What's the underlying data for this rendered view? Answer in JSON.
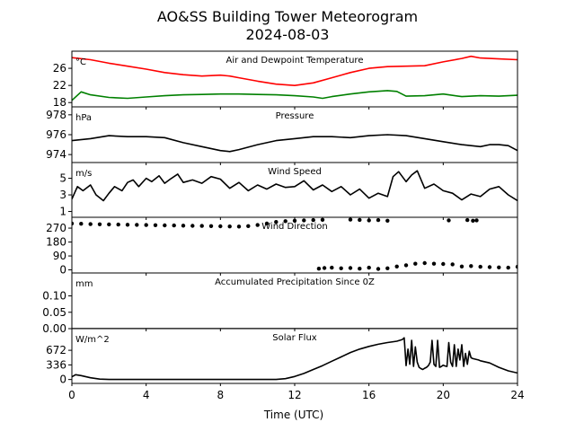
{
  "figure": {
    "title_line1": "AO&SS Building Tower Meteorogram",
    "title_line2": "2024-08-03",
    "xlabel": "Time (UTC)"
  },
  "chart_data": [
    {
      "type": "line",
      "title": "Air and Dewpoint Temperature",
      "unit_label": "°C",
      "xlim": [
        0,
        24
      ],
      "ylim": [
        17,
        30
      ],
      "yticks": [
        18,
        22,
        26
      ],
      "series": [
        {
          "color": "#ff0000",
          "x": [
            0,
            1,
            2,
            3,
            4,
            5,
            6,
            7,
            8,
            8.5,
            9,
            10,
            11,
            12,
            13,
            14,
            15,
            16,
            17,
            18,
            19,
            20,
            21,
            21.5,
            22,
            23,
            24
          ],
          "y": [
            28.5,
            28.0,
            27.2,
            26.5,
            25.8,
            25.0,
            24.5,
            24.2,
            24.4,
            24.2,
            23.8,
            23.0,
            22.3,
            22.0,
            22.6,
            23.8,
            25.0,
            26.0,
            26.4,
            26.5,
            26.6,
            27.5,
            28.3,
            28.8,
            28.4,
            28.2,
            28.0
          ]
        },
        {
          "color": "#008000",
          "x": [
            0,
            0.5,
            1,
            2,
            3,
            4,
            5,
            6,
            7,
            8,
            9,
            10,
            11,
            12,
            13,
            13.5,
            14,
            15,
            16,
            17,
            17.5,
            18,
            19,
            20,
            21,
            22,
            23,
            24
          ],
          "y": [
            18.5,
            20.5,
            19.8,
            19.2,
            19.0,
            19.3,
            19.6,
            19.8,
            19.9,
            20.0,
            20.0,
            19.9,
            19.8,
            19.6,
            19.3,
            19.0,
            19.4,
            20.0,
            20.5,
            20.8,
            20.6,
            19.5,
            19.6,
            20.0,
            19.4,
            19.6,
            19.5,
            19.7
          ]
        }
      ]
    },
    {
      "type": "line",
      "title": "Pressure",
      "unit_label": "hPa",
      "xlim": [
        0,
        24
      ],
      "ylim": [
        973.2,
        978.8
      ],
      "yticks": [
        974,
        976,
        978
      ],
      "series": [
        {
          "color": "#000000",
          "x": [
            0,
            1,
            2,
            3,
            4,
            5,
            6,
            7,
            8,
            8.5,
            9,
            10,
            11,
            12,
            13,
            14,
            15,
            16,
            17,
            18,
            19,
            20,
            21,
            22,
            22.5,
            23,
            23.5,
            24
          ],
          "y": [
            975.4,
            975.6,
            975.9,
            975.8,
            975.8,
            975.7,
            975.2,
            974.8,
            974.4,
            974.3,
            974.5,
            975.0,
            975.4,
            975.6,
            975.8,
            975.8,
            975.7,
            975.9,
            976.0,
            975.9,
            975.6,
            975.3,
            975.0,
            974.8,
            975.0,
            975.0,
            974.9,
            974.4
          ]
        }
      ]
    },
    {
      "type": "line",
      "title": "Wind Speed",
      "unit_label": "m/s",
      "xlim": [
        0,
        24
      ],
      "ylim": [
        0.3,
        6.9
      ],
      "yticks": [
        1,
        3,
        5
      ],
      "series": [
        {
          "color": "#000000",
          "x": [
            0,
            0.3,
            0.6,
            1,
            1.3,
            1.7,
            2,
            2.3,
            2.7,
            3,
            3.3,
            3.6,
            4,
            4.3,
            4.7,
            5,
            5.3,
            5.7,
            6,
            6.5,
            7,
            7.5,
            8,
            8.5,
            9,
            9.5,
            10,
            10.5,
            11,
            11.5,
            12,
            12.5,
            13,
            13.5,
            14,
            14.5,
            15,
            15.5,
            16,
            16.5,
            17,
            17.3,
            17.6,
            18,
            18.3,
            18.6,
            19,
            19.5,
            20,
            20.5,
            21,
            21.5,
            22,
            22.5,
            23,
            23.5,
            24
          ],
          "y": [
            2.5,
            4.0,
            3.5,
            4.2,
            3.0,
            2.3,
            3.2,
            4.0,
            3.5,
            4.5,
            4.8,
            4.0,
            5.0,
            4.6,
            5.3,
            4.4,
            4.9,
            5.5,
            4.5,
            4.8,
            4.4,
            5.2,
            4.9,
            3.8,
            4.5,
            3.5,
            4.2,
            3.7,
            4.3,
            3.9,
            4.0,
            4.7,
            3.6,
            4.2,
            3.4,
            4.0,
            3.0,
            3.7,
            2.6,
            3.2,
            2.8,
            5.2,
            5.8,
            4.6,
            5.4,
            5.9,
            3.8,
            4.3,
            3.5,
            3.2,
            2.4,
            3.1,
            2.8,
            3.7,
            4.0,
            3.0,
            2.3
          ]
        }
      ]
    },
    {
      "type": "scatter",
      "title": "Wind Direction",
      "unit_label": "",
      "xlim": [
        0,
        24
      ],
      "ylim": [
        -20,
        340
      ],
      "yticks": [
        0,
        90,
        180,
        270
      ],
      "series": [
        {
          "color": "#000000",
          "x": [
            0,
            0.5,
            1,
            1.5,
            2,
            2.5,
            3,
            3.5,
            4,
            4.5,
            5,
            5.5,
            6,
            6.5,
            7,
            7.5,
            8,
            8.5,
            9,
            9.5,
            10,
            10.5,
            11,
            11.5,
            12,
            12.5,
            13,
            13.5,
            15,
            15.5,
            16,
            16.5,
            17,
            20.3,
            21.3,
            21.6,
            21.8
          ],
          "y": [
            300,
            298,
            296,
            295,
            294,
            293,
            292,
            291,
            290,
            289,
            288,
            287,
            286,
            285,
            284,
            283,
            282,
            281,
            280,
            283,
            290,
            300,
            310,
            315,
            318,
            320,
            322,
            324,
            325,
            323,
            320,
            322,
            318,
            320,
            322,
            318,
            320
          ]
        },
        {
          "color": "#000000",
          "x": [
            13.3,
            13.6,
            14,
            14.5,
            15,
            15.5,
            16,
            16.5,
            17,
            17.5,
            18,
            18.5,
            19,
            19.5,
            20,
            20.5,
            21,
            21.5,
            22,
            22.5,
            23,
            23.5,
            24
          ],
          "y": [
            8,
            12,
            14,
            10,
            12,
            8,
            14,
            6,
            10,
            22,
            30,
            40,
            44,
            40,
            38,
            36,
            22,
            25,
            20,
            18,
            16,
            14,
            20
          ]
        }
      ]
    },
    {
      "type": "line",
      "title": "Accumulated Precipitation Since 0Z",
      "unit_label": "mm",
      "xlim": [
        0,
        24
      ],
      "ylim": [
        0,
        0.17
      ],
      "yticks": [
        0.0,
        0.05,
        0.1
      ],
      "ytick_labels": [
        "0.00",
        "0.05",
        "0.10"
      ],
      "series": [
        {
          "color": "#000000",
          "x": [
            0,
            24
          ],
          "y": [
            0,
            0
          ]
        }
      ]
    },
    {
      "type": "line",
      "title": "Solar Flux",
      "unit_label": "W/m^2",
      "xlim": [
        0,
        24
      ],
      "ylim": [
        -90,
        1170
      ],
      "yticks": [
        0,
        336,
        672
      ],
      "series": [
        {
          "color": "#000000",
          "x": [
            0,
            0.2,
            0.5,
            1,
            1.5,
            2,
            3,
            4,
            5,
            6,
            7,
            8,
            9,
            10,
            11,
            11.5,
            12,
            12.5,
            13,
            13.5,
            14,
            14.5,
            15,
            15.5,
            16,
            16.5,
            17,
            17.5,
            17.8,
            17.9,
            18.0,
            18.1,
            18.2,
            18.3,
            18.4,
            18.5,
            18.6,
            18.7,
            18.8,
            18.9,
            19.0,
            19.1,
            19.2,
            19.3,
            19.4,
            19.5,
            19.6,
            19.7,
            19.8,
            19.9,
            20.0,
            20.1,
            20.2,
            20.3,
            20.4,
            20.5,
            20.6,
            20.7,
            20.8,
            20.9,
            21.0,
            21.1,
            21.2,
            21.3,
            21.4,
            21.5,
            21.6,
            21.7,
            21.8,
            21.9,
            22.0,
            22.5,
            23.0,
            23.5,
            24
          ],
          "y": [
            60,
            110,
            90,
            40,
            10,
            0,
            0,
            0,
            0,
            0,
            0,
            0,
            0,
            0,
            0,
            20,
            70,
            140,
            230,
            320,
            420,
            520,
            620,
            700,
            760,
            810,
            850,
            880,
            920,
            960,
            320,
            700,
            350,
            900,
            300,
            750,
            400,
            280,
            250,
            230,
            260,
            280,
            320,
            400,
            900,
            350,
            300,
            900,
            280,
            300,
            330,
            310,
            300,
            850,
            400,
            300,
            800,
            300,
            700,
            450,
            800,
            300,
            600,
            350,
            650,
            500,
            480,
            470,
            460,
            450,
            430,
            380,
            280,
            200,
            150
          ]
        }
      ]
    }
  ]
}
